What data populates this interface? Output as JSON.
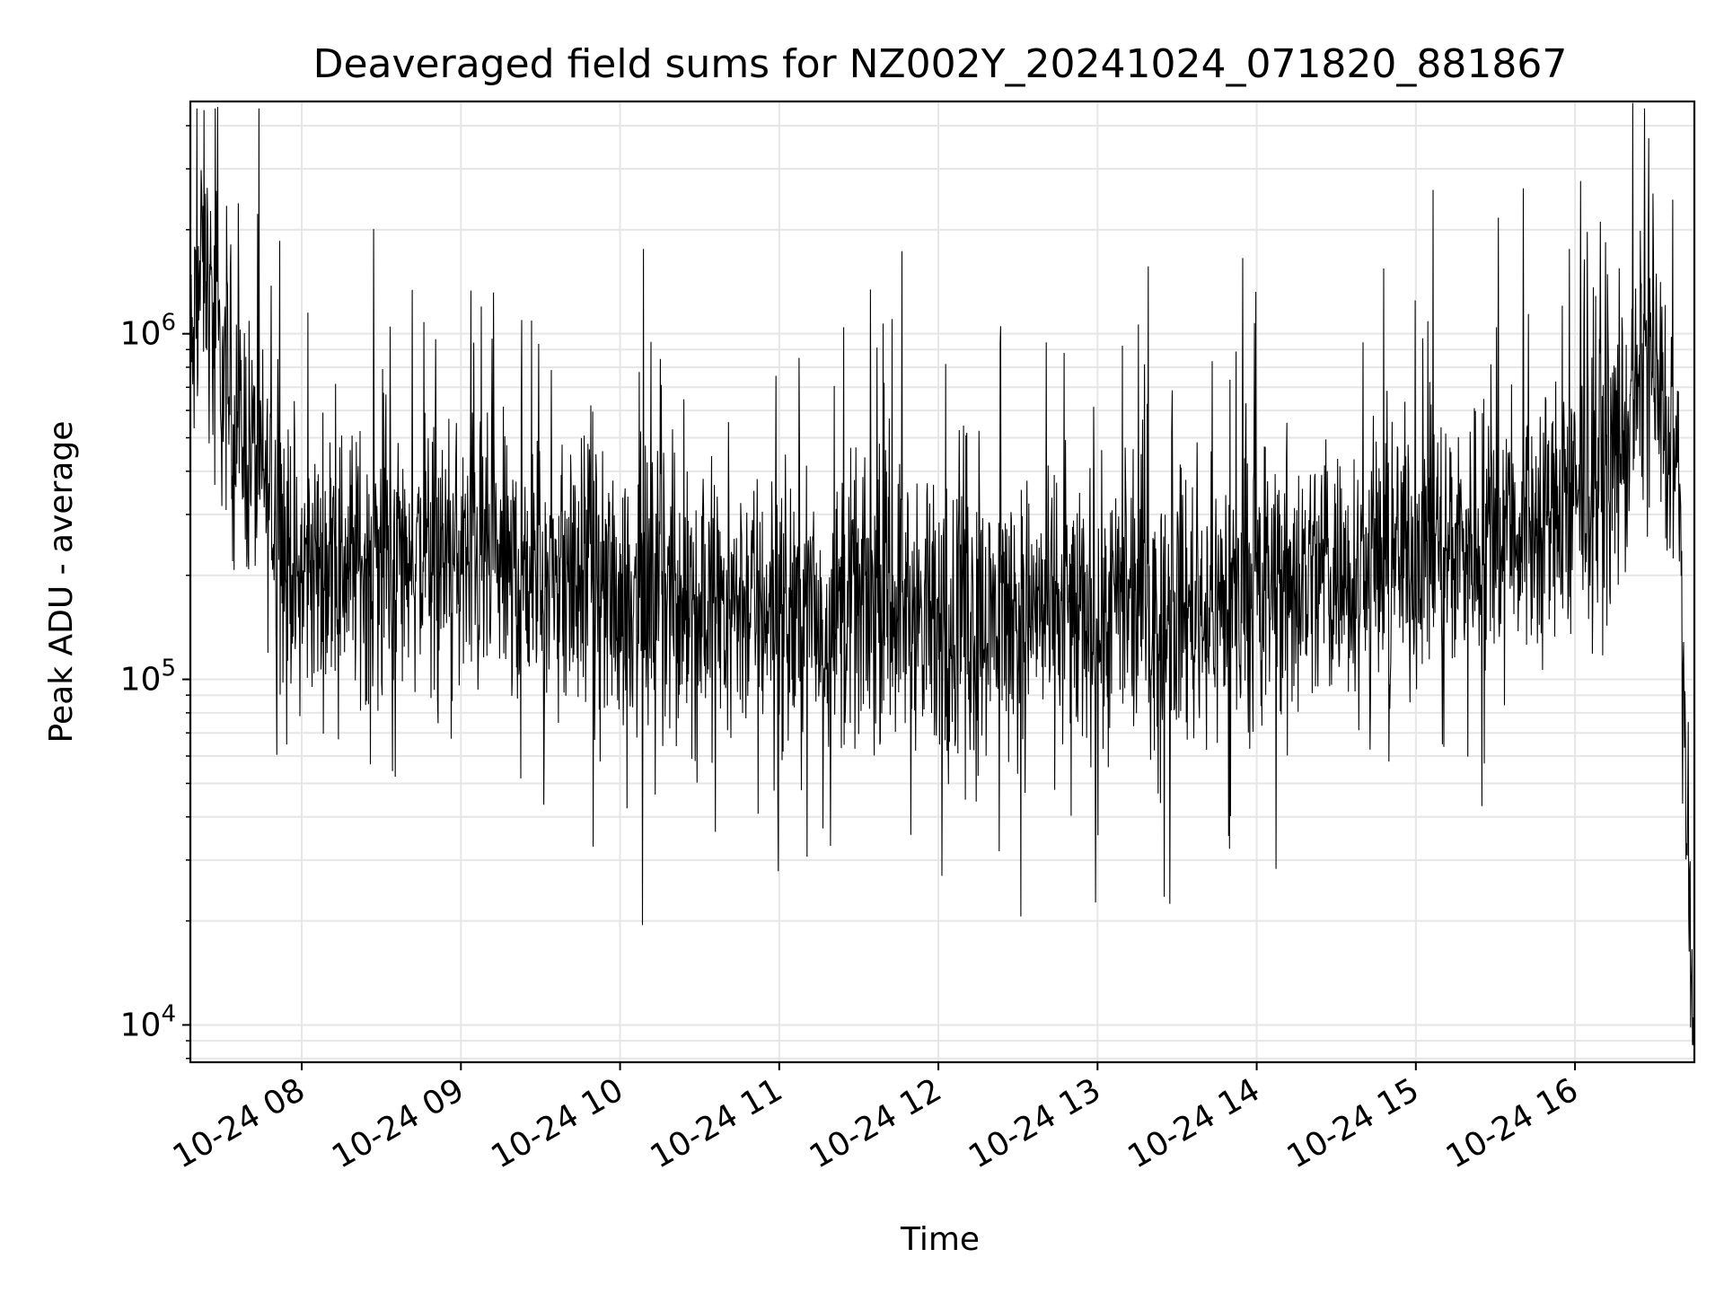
{
  "chart_data": {
    "type": "line",
    "title": "Deaveraged field sums for NZ002Y_20241024_071820_881867",
    "xlabel": "Time",
    "ylabel": "Peak ADU - average",
    "y_scale": "log",
    "ylim": [
      7800,
      4700000
    ],
    "xlim": [
      "2024-10-24 07:18",
      "2024-10-24 16:45"
    ],
    "x_ticks": [
      {
        "value": "2024-10-24 08:00",
        "label": "10-24 08"
      },
      {
        "value": "2024-10-24 09:00",
        "label": "10-24 09"
      },
      {
        "value": "2024-10-24 10:00",
        "label": "10-24 10"
      },
      {
        "value": "2024-10-24 11:00",
        "label": "10-24 11"
      },
      {
        "value": "2024-10-24 12:00",
        "label": "10-24 12"
      },
      {
        "value": "2024-10-24 13:00",
        "label": "10-24 13"
      },
      {
        "value": "2024-10-24 14:00",
        "label": "10-24 14"
      },
      {
        "value": "2024-10-24 15:00",
        "label": "10-24 15"
      },
      {
        "value": "2024-10-24 16:00",
        "label": "10-24 16"
      }
    ],
    "y_ticks": [
      {
        "value": 10000,
        "base": "10",
        "exp": "4"
      },
      {
        "value": 100000,
        "base": "10",
        "exp": "5"
      },
      {
        "value": 1000000,
        "base": "10",
        "exp": "6"
      }
    ],
    "grid": true,
    "legend": false,
    "line_color": "#000000",
    "series": [
      {
        "x": [
          "2024-10-24 07:18",
          "2024-10-24 07:21",
          "2024-10-24 07:23",
          "2024-10-24 07:27",
          "2024-10-24 07:31",
          "2024-10-24 07:35",
          "2024-10-24 07:40",
          "2024-10-24 07:45",
          "2024-10-24 07:50",
          "2024-10-24 07:55",
          "2024-10-24 08:00",
          "2024-10-24 08:15",
          "2024-10-24 08:30",
          "2024-10-24 08:45",
          "2024-10-24 09:00",
          "2024-10-24 09:15",
          "2024-10-24 09:30",
          "2024-10-24 09:45",
          "2024-10-24 10:00",
          "2024-10-24 10:15",
          "2024-10-24 10:30",
          "2024-10-24 10:45",
          "2024-10-24 11:00",
          "2024-10-24 11:15",
          "2024-10-24 11:30",
          "2024-10-24 11:45",
          "2024-10-24 12:00",
          "2024-10-24 12:15",
          "2024-10-24 12:30",
          "2024-10-24 12:45",
          "2024-10-24 13:00",
          "2024-10-24 13:15",
          "2024-10-24 13:30",
          "2024-10-24 13:45",
          "2024-10-24 14:00",
          "2024-10-24 14:15",
          "2024-10-24 14:30",
          "2024-10-24 14:45",
          "2024-10-24 15:00",
          "2024-10-24 15:15",
          "2024-10-24 15:30",
          "2024-10-24 15:45",
          "2024-10-24 16:00",
          "2024-10-24 16:10",
          "2024-10-24 16:20",
          "2024-10-24 16:27",
          "2024-10-24 16:32",
          "2024-10-24 16:36",
          "2024-10-24 16:39",
          "2024-10-24 16:42",
          "2024-10-24 16:44"
        ],
        "values": [
          700000,
          1300000,
          1700000,
          1000000,
          700000,
          550000,
          480000,
          380000,
          300000,
          230000,
          210000,
          220000,
          220000,
          230000,
          220000,
          215000,
          200000,
          195000,
          180000,
          180000,
          175000,
          170000,
          160000,
          150000,
          165000,
          175000,
          140000,
          150000,
          160000,
          160000,
          155000,
          160000,
          160000,
          165000,
          180000,
          200000,
          210000,
          220000,
          240000,
          250000,
          270000,
          290000,
          320000,
          400000,
          500000,
          900000,
          700000,
          500000,
          400000,
          40000,
          12000
        ]
      }
    ]
  }
}
